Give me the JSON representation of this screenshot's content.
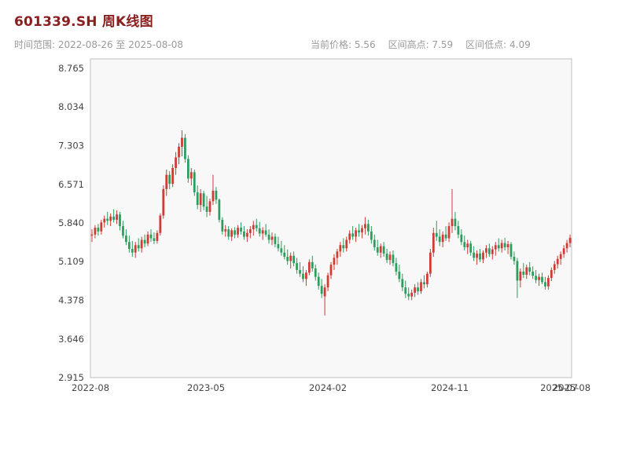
{
  "header": {
    "title": "601339.SH 周K线图",
    "subtitle_left": "时间范围: 2022-08-26 至 2025-08-08",
    "stats": {
      "current_price": "当前价格: 5.56",
      "range_high": "区间高点: 7.59",
      "range_low": "区间低点: 4.09"
    }
  },
  "chart_data": {
    "type": "candlestick",
    "symbol": "601339.SH",
    "title": "601339.SH 周K线图",
    "interval": "weekly",
    "start_date": "2022-08-26",
    "end_date": "2025-08-08",
    "current_price": 5.56,
    "range_high": 7.59,
    "range_low": 4.09,
    "grid": false,
    "y_ticks": [
      "8.765",
      "8.034",
      "7.303",
      "6.571",
      "5.840",
      "5.109",
      "4.378",
      "3.646",
      "2.915"
    ],
    "x_ticks": [
      {
        "label": "2022-08",
        "week": 0
      },
      {
        "label": "2023-05",
        "week": 37
      },
      {
        "label": "2024-02",
        "week": 76
      },
      {
        "label": "2024-11",
        "week": 115
      },
      {
        "label": "2025-07",
        "week": 150
      },
      {
        "label": "2025-08",
        "week": 154
      }
    ],
    "colors": {
      "up": "#cf3b35",
      "down": "#2b9e5e",
      "title": "#8b1e1e",
      "subtitle": "#9a9a9a",
      "plot_bg": "#f8f8f8",
      "plot_border": "#bfbfbf",
      "tick_text": "#444444"
    },
    "candles": [
      [
        5.6,
        5.72,
        5.48,
        5.62
      ],
      [
        5.62,
        5.8,
        5.55,
        5.75
      ],
      [
        5.75,
        5.82,
        5.6,
        5.68
      ],
      [
        5.68,
        5.9,
        5.62,
        5.85
      ],
      [
        5.85,
        5.98,
        5.75,
        5.92
      ],
      [
        5.92,
        6.05,
        5.8,
        5.88
      ],
      [
        5.88,
        6.02,
        5.78,
        5.96
      ],
      [
        5.96,
        6.1,
        5.85,
        5.9
      ],
      [
        5.9,
        6.08,
        5.82,
        6.0
      ],
      [
        6.0,
        6.05,
        5.7,
        5.78
      ],
      [
        5.78,
        5.88,
        5.55,
        5.6
      ],
      [
        5.6,
        5.72,
        5.42,
        5.48
      ],
      [
        5.48,
        5.6,
        5.28,
        5.35
      ],
      [
        5.35,
        5.5,
        5.2,
        5.28
      ],
      [
        5.28,
        5.48,
        5.18,
        5.42
      ],
      [
        5.42,
        5.55,
        5.3,
        5.36
      ],
      [
        5.36,
        5.58,
        5.28,
        5.52
      ],
      [
        5.52,
        5.62,
        5.38,
        5.45
      ],
      [
        5.45,
        5.68,
        5.4,
        5.62
      ],
      [
        5.62,
        5.72,
        5.48,
        5.55
      ],
      [
        5.55,
        5.66,
        5.44,
        5.5
      ],
      [
        5.5,
        5.7,
        5.45,
        5.65
      ],
      [
        5.65,
        6.02,
        5.6,
        5.98
      ],
      [
        5.98,
        6.55,
        5.92,
        6.48
      ],
      [
        6.48,
        6.85,
        6.35,
        6.75
      ],
      [
        6.75,
        6.82,
        6.48,
        6.58
      ],
      [
        6.58,
        6.95,
        6.52,
        6.88
      ],
      [
        6.88,
        7.18,
        6.75,
        7.08
      ],
      [
        7.08,
        7.35,
        6.95,
        7.28
      ],
      [
        7.28,
        7.59,
        7.1,
        7.45
      ],
      [
        7.45,
        7.52,
        6.98,
        7.05
      ],
      [
        7.05,
        7.12,
        6.6,
        6.68
      ],
      [
        6.68,
        6.88,
        6.55,
        6.8
      ],
      [
        6.8,
        6.85,
        6.35,
        6.42
      ],
      [
        6.42,
        6.55,
        6.1,
        6.18
      ],
      [
        6.18,
        6.48,
        6.05,
        6.4
      ],
      [
        6.4,
        6.45,
        6.08,
        6.15
      ],
      [
        6.15,
        6.35,
        5.95,
        6.05
      ],
      [
        6.05,
        6.3,
        5.98,
        6.25
      ],
      [
        6.25,
        6.75,
        6.18,
        6.45
      ],
      [
        6.45,
        6.52,
        6.2,
        6.28
      ],
      [
        6.28,
        6.3,
        5.85,
        5.9
      ],
      [
        5.9,
        5.95,
        5.62,
        5.68
      ],
      [
        5.68,
        5.8,
        5.58,
        5.72
      ],
      [
        5.72,
        5.78,
        5.52,
        5.58
      ],
      [
        5.58,
        5.74,
        5.5,
        5.7
      ],
      [
        5.7,
        5.76,
        5.55,
        5.62
      ],
      [
        5.62,
        5.8,
        5.56,
        5.75
      ],
      [
        5.75,
        5.85,
        5.62,
        5.68
      ],
      [
        5.68,
        5.78,
        5.52,
        5.58
      ],
      [
        5.58,
        5.72,
        5.48,
        5.65
      ],
      [
        5.65,
        5.78,
        5.55,
        5.72
      ],
      [
        5.72,
        5.88,
        5.6,
        5.8
      ],
      [
        5.8,
        5.92,
        5.68,
        5.74
      ],
      [
        5.74,
        5.86,
        5.58,
        5.64
      ],
      [
        5.64,
        5.76,
        5.52,
        5.7
      ],
      [
        5.7,
        5.82,
        5.58,
        5.62
      ],
      [
        5.62,
        5.72,
        5.45,
        5.52
      ],
      [
        5.52,
        5.66,
        5.42,
        5.58
      ],
      [
        5.58,
        5.64,
        5.38,
        5.44
      ],
      [
        5.44,
        5.58,
        5.3,
        5.36
      ],
      [
        5.36,
        5.5,
        5.22,
        5.28
      ],
      [
        5.28,
        5.42,
        5.15,
        5.2
      ],
      [
        5.2,
        5.34,
        5.05,
        5.12
      ],
      [
        5.12,
        5.28,
        4.98,
        5.22
      ],
      [
        5.22,
        5.3,
        5.02,
        5.08
      ],
      [
        5.08,
        5.18,
        4.88,
        4.95
      ],
      [
        4.95,
        5.1,
        4.82,
        4.88
      ],
      [
        4.88,
        5.02,
        4.72,
        4.78
      ],
      [
        4.78,
        4.95,
        4.65,
        4.9
      ],
      [
        4.9,
        5.15,
        4.85,
        5.1
      ],
      [
        5.1,
        5.22,
        4.92,
        4.98
      ],
      [
        4.98,
        5.05,
        4.75,
        4.82
      ],
      [
        4.82,
        4.9,
        4.58,
        4.65
      ],
      [
        4.65,
        4.78,
        4.42,
        4.5
      ],
      [
        4.45,
        4.68,
        4.09,
        4.62
      ],
      [
        4.62,
        4.9,
        4.55,
        4.85
      ],
      [
        4.85,
        5.1,
        4.78,
        5.05
      ],
      [
        5.05,
        5.25,
        4.95,
        5.18
      ],
      [
        5.18,
        5.35,
        5.05,
        5.3
      ],
      [
        5.3,
        5.48,
        5.2,
        5.42
      ],
      [
        5.42,
        5.55,
        5.28,
        5.36
      ],
      [
        5.36,
        5.58,
        5.3,
        5.52
      ],
      [
        5.52,
        5.7,
        5.45,
        5.64
      ],
      [
        5.64,
        5.78,
        5.52,
        5.58
      ],
      [
        5.58,
        5.75,
        5.48,
        5.7
      ],
      [
        5.7,
        5.82,
        5.58,
        5.66
      ],
      [
        5.66,
        5.8,
        5.55,
        5.74
      ],
      [
        5.74,
        5.95,
        5.62,
        5.82
      ],
      [
        5.82,
        5.9,
        5.6,
        5.68
      ],
      [
        5.68,
        5.78,
        5.45,
        5.52
      ],
      [
        5.52,
        5.62,
        5.32,
        5.38
      ],
      [
        5.38,
        5.52,
        5.22,
        5.28
      ],
      [
        5.28,
        5.45,
        5.18,
        5.4
      ],
      [
        5.4,
        5.48,
        5.2,
        5.26
      ],
      [
        5.26,
        5.35,
        5.08,
        5.14
      ],
      [
        5.14,
        5.3,
        5.05,
        5.24
      ],
      [
        5.24,
        5.32,
        5.02,
        5.08
      ],
      [
        5.08,
        5.18,
        4.85,
        4.92
      ],
      [
        4.92,
        5.05,
        4.72,
        4.78
      ],
      [
        4.78,
        4.88,
        4.55,
        4.62
      ],
      [
        4.62,
        4.75,
        4.42,
        4.5
      ],
      [
        4.5,
        4.62,
        4.38,
        4.45
      ],
      [
        4.45,
        4.58,
        4.38,
        4.52
      ],
      [
        4.52,
        4.68,
        4.44,
        4.62
      ],
      [
        4.62,
        4.72,
        4.48,
        4.55
      ],
      [
        4.55,
        4.78,
        4.5,
        4.72
      ],
      [
        4.72,
        4.85,
        4.6,
        4.68
      ],
      [
        4.68,
        4.92,
        4.62,
        4.88
      ],
      [
        4.88,
        5.35,
        4.82,
        5.28
      ],
      [
        5.28,
        5.75,
        5.2,
        5.65
      ],
      [
        5.65,
        5.88,
        5.5,
        5.58
      ],
      [
        5.58,
        5.72,
        5.4,
        5.48
      ],
      [
        5.48,
        5.68,
        5.38,
        5.62
      ],
      [
        5.62,
        5.78,
        5.5,
        5.55
      ],
      [
        5.55,
        5.85,
        5.48,
        5.78
      ],
      [
        5.78,
        6.48,
        5.65,
        5.92
      ],
      [
        5.92,
        6.05,
        5.7,
        5.78
      ],
      [
        5.78,
        5.88,
        5.55,
        5.62
      ],
      [
        5.62,
        5.72,
        5.42,
        5.48
      ],
      [
        5.48,
        5.6,
        5.32,
        5.38
      ],
      [
        5.38,
        5.52,
        5.25,
        5.45
      ],
      [
        5.45,
        5.5,
        5.22,
        5.28
      ],
      [
        5.28,
        5.4,
        5.12,
        5.18
      ],
      [
        5.18,
        5.32,
        5.05,
        5.26
      ],
      [
        5.26,
        5.35,
        5.1,
        5.15
      ],
      [
        5.15,
        5.32,
        5.08,
        5.28
      ],
      [
        5.28,
        5.42,
        5.18,
        5.36
      ],
      [
        5.36,
        5.45,
        5.2,
        5.25
      ],
      [
        5.25,
        5.4,
        5.15,
        5.34
      ],
      [
        5.34,
        5.48,
        5.22,
        5.42
      ],
      [
        5.42,
        5.55,
        5.3,
        5.36
      ],
      [
        5.36,
        5.52,
        5.28,
        5.46
      ],
      [
        5.46,
        5.56,
        5.32,
        5.38
      ],
      [
        5.38,
        5.5,
        5.25,
        5.44
      ],
      [
        5.44,
        5.48,
        5.15,
        5.2
      ],
      [
        5.2,
        5.3,
        5.05,
        5.12
      ],
      [
        5.12,
        5.18,
        4.42,
        4.75
      ],
      [
        4.75,
        4.98,
        4.62,
        4.92
      ],
      [
        4.92,
        5.08,
        4.8,
        4.86
      ],
      [
        4.86,
        5.05,
        4.78,
        5.0
      ],
      [
        5.0,
        5.1,
        4.85,
        4.92
      ],
      [
        4.92,
        5.02,
        4.78,
        4.84
      ],
      [
        4.84,
        4.95,
        4.7,
        4.76
      ],
      [
        4.76,
        4.88,
        4.65,
        4.82
      ],
      [
        4.82,
        4.9,
        4.68,
        4.72
      ],
      [
        4.72,
        4.82,
        4.58,
        4.64
      ],
      [
        4.64,
        4.85,
        4.58,
        4.8
      ],
      [
        4.8,
        5.0,
        4.74,
        4.95
      ],
      [
        4.95,
        5.12,
        4.88,
        5.06
      ],
      [
        5.06,
        5.22,
        4.98,
        5.16
      ],
      [
        5.16,
        5.3,
        5.05,
        5.25
      ],
      [
        5.25,
        5.42,
        5.18,
        5.36
      ],
      [
        5.36,
        5.52,
        5.28,
        5.46
      ],
      [
        5.46,
        5.62,
        5.38,
        5.56
      ]
    ]
  }
}
